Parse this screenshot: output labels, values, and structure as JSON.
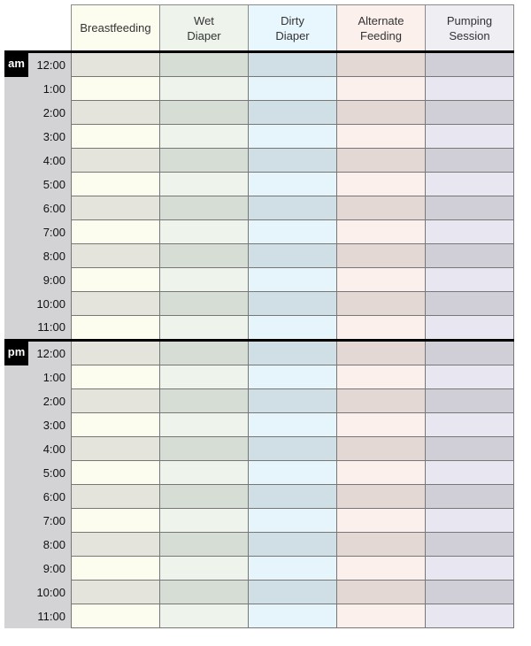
{
  "columns": [
    {
      "label_line1": "Breastfeeding",
      "label_line2": "",
      "header_color": "#fdfdef",
      "light": "#fdfdef",
      "dark": "#e4e4dc"
    },
    {
      "label_line1": "Wet",
      "label_line2": "Diaper",
      "header_color": "#eef4ec",
      "light": "#eef4ec",
      "dark": "#d6ddd5"
    },
    {
      "label_line1": "Dirty",
      "label_line2": "Diaper",
      "header_color": "#e8f6fd",
      "light": "#e6f4fb",
      "dark": "#d0dfe6"
    },
    {
      "label_line1": "Alternate",
      "label_line2": "Feeding",
      "header_color": "#fbf0ec",
      "light": "#fbf0ec",
      "dark": "#e3d8d3"
    },
    {
      "label_line1": "Pumping",
      "label_line2": "Session",
      "header_color": "#eeeef3",
      "light": "#e8e6f0",
      "dark": "#d0cfd8"
    }
  ],
  "periods": [
    {
      "label": "am",
      "times": [
        "12:00",
        "1:00",
        "2:00",
        "3:00",
        "4:00",
        "5:00",
        "6:00",
        "7:00",
        "8:00",
        "9:00",
        "10:00",
        "11:00"
      ]
    },
    {
      "label": "pm",
      "times": [
        "12:00",
        "1:00",
        "2:00",
        "3:00",
        "4:00",
        "5:00",
        "6:00",
        "7:00",
        "8:00",
        "9:00",
        "10:00",
        "11:00"
      ]
    }
  ]
}
